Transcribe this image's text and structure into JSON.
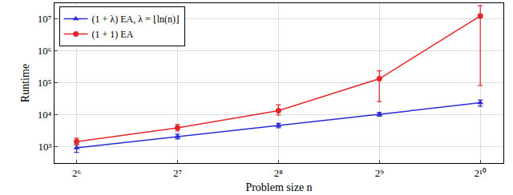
{
  "chart_data": {
    "type": "line",
    "x_label": "Problem size n",
    "y_label": "Runtime",
    "log": true,
    "grid": true,
    "legend": "top-left",
    "x": [
      64,
      128,
      256,
      512,
      1024
    ],
    "xlim": [
      55,
      1200
    ],
    "xticks": [
      {
        "value": 64,
        "label": "2⁶"
      },
      {
        "value": 128,
        "label": "2⁷"
      },
      {
        "value": 256,
        "label": "2⁸"
      },
      {
        "value": 512,
        "label": "2⁹"
      },
      {
        "value": 1024,
        "label": "2¹⁰"
      }
    ],
    "ylim": [
      300,
      30000000
    ],
    "yticks": [
      {
        "value": 1000,
        "label": "10³"
      },
      {
        "value": 10000,
        "label": "10⁴"
      },
      {
        "value": 100000,
        "label": "10⁵"
      },
      {
        "value": 1000000,
        "label": "10⁶"
      },
      {
        "value": 10000000,
        "label": "10⁷"
      }
    ],
    "series": [
      {
        "name": "(1 + λ) EA, λ = ⌊ln(n)⌋",
        "color": "#2b2bd6",
        "marker": "triangle-up",
        "line_style": "solid",
        "values": [
          900,
          2000,
          4500,
          10000,
          23000
        ],
        "error_low": [
          650,
          1700,
          3800,
          8800,
          18000
        ],
        "error_high": [
          1100,
          2400,
          5200,
          11500,
          28000
        ]
      },
      {
        "name": "(1 + 1) EA",
        "color": "#e3262b",
        "marker": "circle",
        "line_style": "solid",
        "values": [
          1400,
          3800,
          13000,
          130000,
          12000000
        ],
        "error_low": [
          1100,
          3000,
          9500,
          25000,
          80000
        ],
        "error_high": [
          1800,
          4800,
          20000,
          230000,
          25000000
        ]
      }
    ]
  }
}
